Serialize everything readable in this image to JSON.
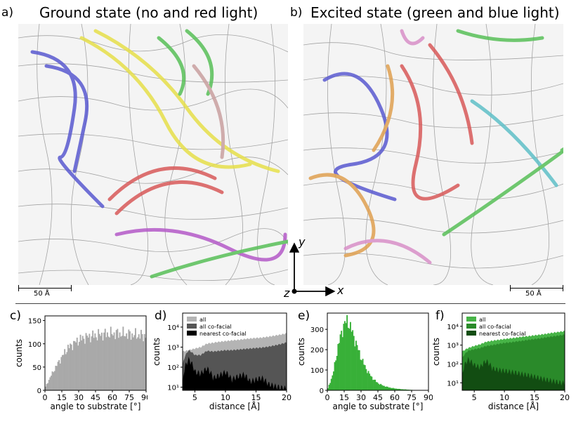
{
  "labels": {
    "a": "a)",
    "b": "b)",
    "c": "c)",
    "d": "d)",
    "e": "e)",
    "f": "f)"
  },
  "titles": {
    "a": "Ground state (no and red light)",
    "b": "Excited state (green and blue light)"
  },
  "scale_bar": "50 Å",
  "axes_triad": {
    "y": "y",
    "z": "z",
    "x": "x"
  },
  "colors": {
    "gray_hist": "#a9a9a9",
    "green_hist": "#38b038",
    "d_all": "#b4b4b4",
    "d_cofacial": "#555555",
    "d_nearest": "#000000",
    "f_all": "#47b447",
    "f_cofacial": "#2a8a2a",
    "f_nearest": "#124d12"
  },
  "chart_data": [
    {
      "panel": "c",
      "type": "bar",
      "xlabel": "angle to substrate [°]",
      "ylabel": "counts",
      "xlim": [
        0,
        90
      ],
      "ylim": [
        0,
        160
      ],
      "xticks": [
        "0",
        "15",
        "30",
        "45",
        "60",
        "75",
        "90"
      ],
      "yticks": [
        "0",
        "50",
        "100",
        "150"
      ],
      "x": [
        0,
        5,
        10,
        15,
        20,
        25,
        30,
        35,
        40,
        45,
        50,
        55,
        60,
        65,
        70,
        75,
        80,
        85,
        90
      ],
      "y": [
        5,
        30,
        52,
        72,
        90,
        100,
        108,
        113,
        116,
        118,
        120,
        121,
        122,
        122,
        121,
        120,
        119,
        118,
        117
      ]
    },
    {
      "panel": "d",
      "type": "area",
      "xlabel": "distance [Å]",
      "ylabel": "counts",
      "yscale": "log",
      "xlim": [
        3,
        20
      ],
      "ylim": [
        7,
        50000
      ],
      "xticks": [
        "5",
        "10",
        "15",
        "20"
      ],
      "yticks": [
        "10¹",
        "10²",
        "10³",
        "10⁴"
      ],
      "x": [
        3,
        4,
        5,
        6,
        7,
        8,
        9,
        10,
        11,
        12,
        13,
        14,
        15,
        16,
        17,
        18,
        19,
        20
      ],
      "series": [
        {
          "name": "all",
          "values": [
            600,
            700,
            850,
            1000,
            1500,
            1650,
            1850,
            2000,
            2150,
            2300,
            2500,
            2700,
            2850,
            3000,
            3300,
            3700,
            4200,
            4800
          ]
        },
        {
          "name": "all co-facial",
          "values": [
            120,
            700,
            400,
            400,
            650,
            600,
            650,
            700,
            700,
            750,
            800,
            850,
            900,
            950,
            1050,
            1200,
            1400,
            1700
          ]
        },
        {
          "name": "nearest co-facial",
          "values": [
            12,
            250,
            60,
            50,
            90,
            30,
            40,
            60,
            25,
            35,
            45,
            20,
            25,
            30,
            15,
            12,
            10,
            9
          ]
        }
      ]
    },
    {
      "panel": "e",
      "type": "bar",
      "xlabel": "angle to substrate [°]",
      "ylabel": "counts",
      "xlim": [
        0,
        90
      ],
      "ylim": [
        0,
        380
      ],
      "xticks": [
        "0",
        "15",
        "30",
        "45",
        "60",
        "75",
        "90"
      ],
      "yticks": [
        "0",
        "100",
        "200",
        "300"
      ],
      "x": [
        0,
        5,
        10,
        15,
        18,
        20,
        25,
        30,
        35,
        40,
        45,
        50,
        55,
        60,
        65,
        70,
        75,
        80,
        85,
        90
      ],
      "y": [
        2,
        80,
        230,
        330,
        340,
        320,
        240,
        160,
        100,
        60,
        35,
        22,
        14,
        9,
        6,
        4,
        2,
        1,
        1,
        0
      ]
    },
    {
      "panel": "f",
      "type": "area",
      "xlabel": "distance [Å]",
      "ylabel": "counts",
      "yscale": "log",
      "xlim": [
        3,
        20
      ],
      "ylim": [
        4,
        50000
      ],
      "xticks": [
        "5",
        "10",
        "15",
        "20"
      ],
      "yticks": [
        "10¹",
        "10²",
        "10³",
        "10⁴"
      ],
      "x": [
        3,
        4,
        5,
        6,
        7,
        8,
        9,
        10,
        11,
        12,
        13,
        14,
        15,
        16,
        17,
        18,
        19,
        20
      ],
      "series": [
        {
          "name": "all",
          "values": [
            450,
            700,
            900,
            1100,
            1500,
            1700,
            1900,
            2100,
            2300,
            2500,
            2800,
            3000,
            3300,
            3600,
            4000,
            4500,
            5000,
            5500
          ]
        },
        {
          "name": "all co-facial",
          "values": [
            200,
            500,
            600,
            700,
            900,
            1000,
            1150,
            1300,
            1400,
            1550,
            1700,
            1900,
            2100,
            2300,
            2600,
            2900,
            3200,
            3600
          ]
        },
        {
          "name": "nearest co-facial",
          "values": [
            25,
            180,
            90,
            70,
            150,
            60,
            50,
            45,
            40,
            35,
            30,
            26,
            22,
            18,
            15,
            13,
            11,
            10
          ]
        }
      ]
    }
  ]
}
